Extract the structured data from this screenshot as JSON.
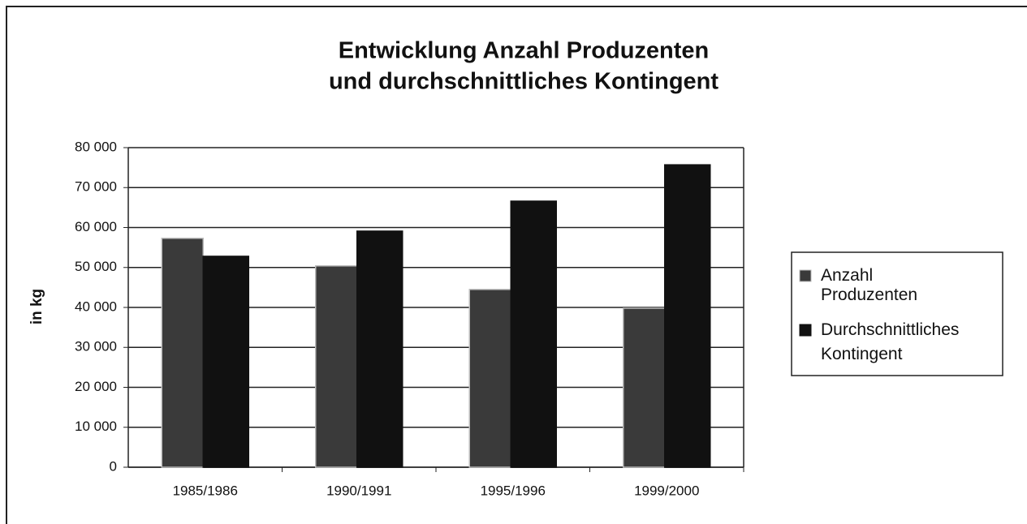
{
  "chart_data": {
    "type": "bar",
    "title": "Entwicklung Anzahl Produzenten",
    "subtitle": "und durchschnittliches Kontingent",
    "y_label": "in kg",
    "categories": [
      "1985/1986",
      "1990/1991",
      "1995/1996",
      "1999/2000"
    ],
    "series": [
      {
        "name": "Anzahl Produzenten",
        "color": "#3a3a3a",
        "values": [
          57300,
          50400,
          44500,
          39800
        ]
      },
      {
        "name": "Durchschnittliches Kontingent",
        "color": "#111111",
        "values": [
          52800,
          59100,
          66600,
          75700
        ]
      }
    ],
    "ylim": [
      0,
      80000
    ],
    "yticks": [
      0,
      {
        "value": 10000,
        "label": "10 000"
      },
      {
        "value": 20000,
        "label": "20 000"
      },
      {
        "value": 30000,
        "label": "30 000"
      },
      {
        "value": 40000,
        "label": "40 000"
      },
      {
        "value": 50000,
        "label": "50 000"
      },
      {
        "value": 60000,
        "label": "60 000"
      },
      {
        "value": 70000,
        "label": "70 000"
      },
      {
        "value": 80000,
        "label": "80 000"
      }
    ],
    "grid": true,
    "legend": "right"
  }
}
